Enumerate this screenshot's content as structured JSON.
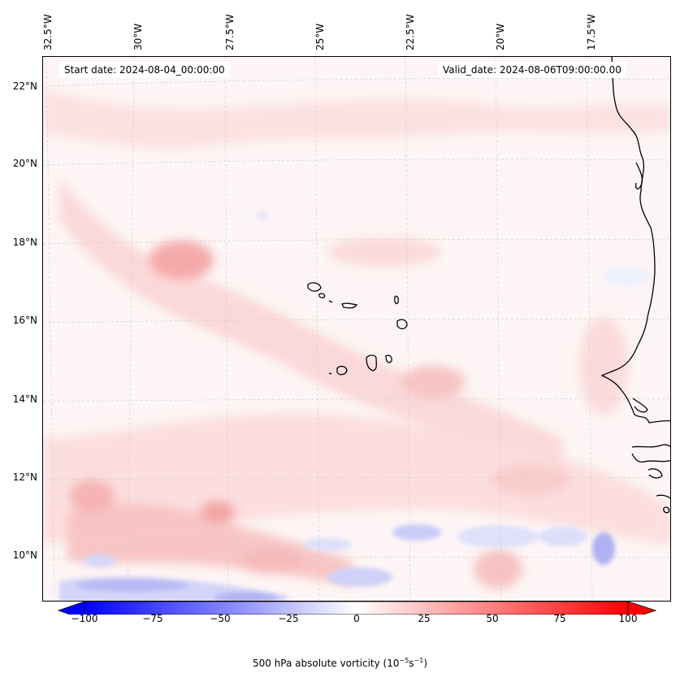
{
  "map": {
    "lon_labels": [
      "32.5°W",
      "30°W",
      "27.5°W",
      "25°W",
      "22.5°W",
      "20°W",
      "17.5°W"
    ],
    "lat_labels": [
      "22°N",
      "20°N",
      "18°N",
      "16°N",
      "14°N",
      "12°N",
      "10°N"
    ],
    "start_date": "Start date: 2024-08-04_00:00:00",
    "valid_date": "Valid_date: 2024-08-06T09:00:00.00",
    "field": "500 hPa absolute vorticity",
    "colormap": "bwr",
    "gridlines": true
  },
  "colorbar": {
    "ticks": [
      "−100",
      "−75",
      "−50",
      "−25",
      "0",
      "25",
      "50",
      "75",
      "100"
    ],
    "range": [
      -100,
      100
    ],
    "label_prefix": "500 hPa absolute vorticity (10",
    "label_exp1": "−5",
    "label_mid": "s",
    "label_exp2": "−1",
    "label_suffix": ")",
    "colors": {
      "min": "#0000ff",
      "mid": "#ffffff",
      "max": "#ff0000"
    }
  }
}
